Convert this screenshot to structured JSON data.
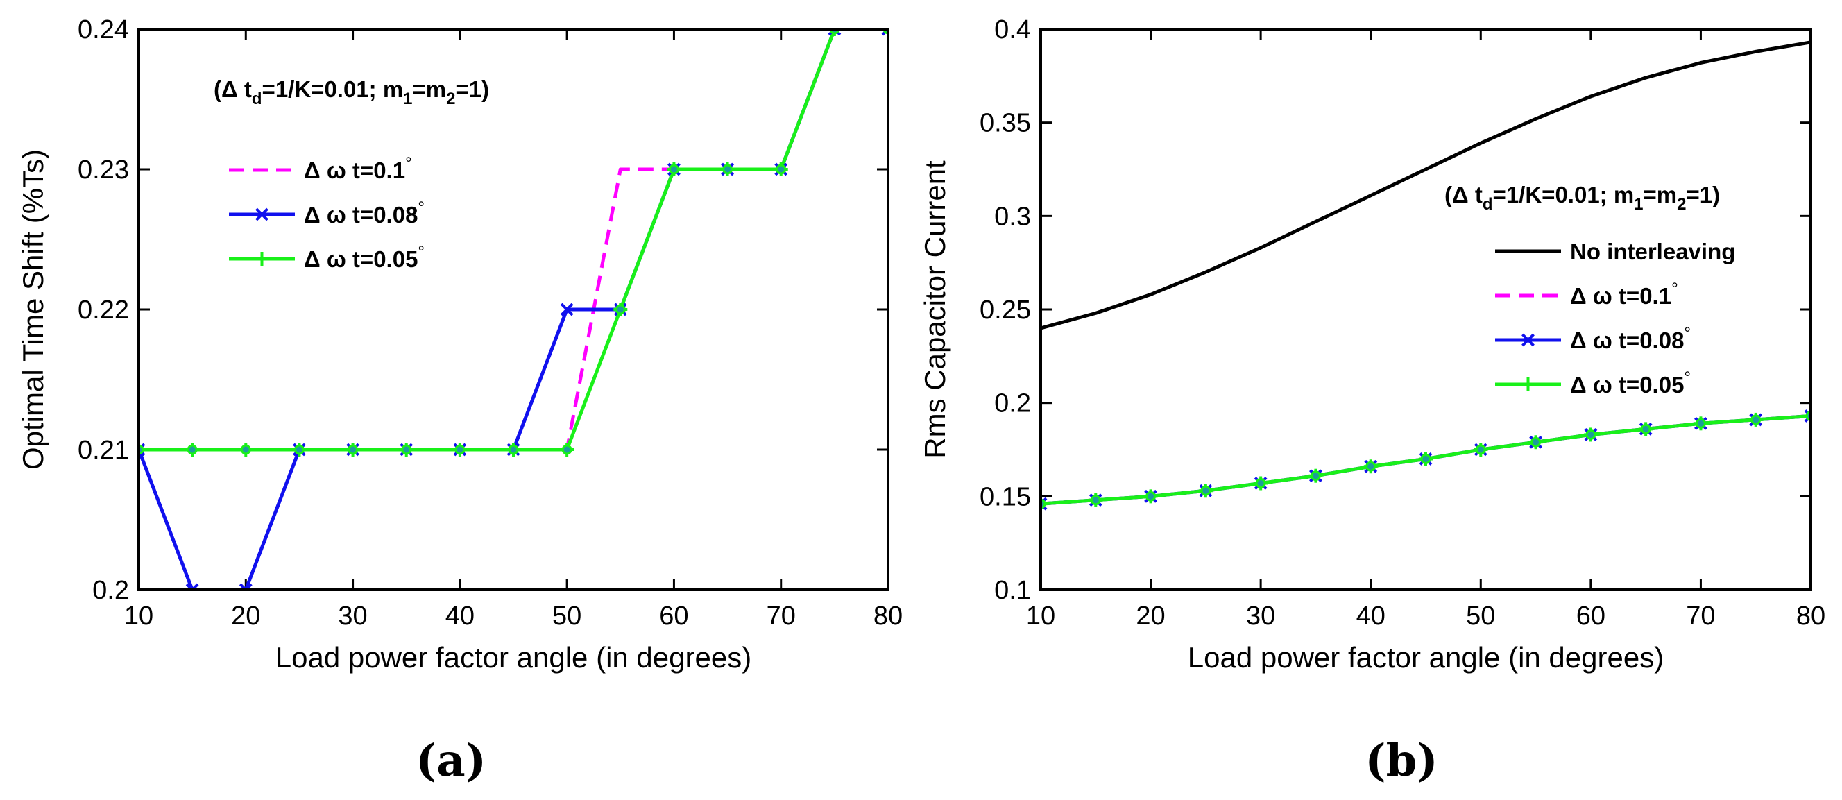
{
  "chart_data": [
    {
      "type": "line",
      "panel_label": "(a)",
      "title": "",
      "xlabel": "Load power factor angle (in degrees)",
      "ylabel": "Optimal Time Shift (%Ts)",
      "xlim": [
        10,
        80
      ],
      "ylim": [
        0.2,
        0.24
      ],
      "xticks": [
        "10",
        "20",
        "30",
        "40",
        "50",
        "60",
        "70",
        "80"
      ],
      "yticks": [
        "0.2",
        "0.21",
        "0.22",
        "0.23",
        "0.24"
      ],
      "annotation": {
        "prefix": "(Δ t",
        "sub1": "d",
        "mid1": "=1/K=0.01; m",
        "sub2": "1",
        "mid2": "=m",
        "sub3": "2",
        "suffix": "=1)"
      },
      "legend_position": "upper-left",
      "series": [
        {
          "name": "Δ ω t=0.1°",
          "label_main": "Δ ω t=0.1",
          "label_sup": "°",
          "color": "#ff00ff",
          "style": "dashed",
          "marker": "none",
          "x": [
            10,
            15,
            20,
            25,
            30,
            35,
            40,
            45,
            50,
            55,
            60,
            65,
            70,
            75,
            80
          ],
          "values": [
            0.21,
            0.21,
            0.21,
            0.21,
            0.21,
            0.21,
            0.21,
            0.21,
            0.21,
            0.23,
            0.23,
            0.23,
            0.23,
            0.24,
            0.24
          ]
        },
        {
          "name": "Δ ω t=0.08°",
          "label_main": "Δ ω t=0.08",
          "label_sup": "°",
          "color": "#1010ee",
          "style": "solid",
          "marker": "x",
          "x": [
            10,
            15,
            20,
            25,
            30,
            35,
            40,
            45,
            50,
            55,
            60,
            65,
            70,
            75,
            80
          ],
          "values": [
            0.21,
            0.2,
            0.2,
            0.21,
            0.21,
            0.21,
            0.21,
            0.21,
            0.22,
            0.22,
            0.23,
            0.23,
            0.23,
            0.24,
            0.24
          ]
        },
        {
          "name": "Δ ω t=0.05°",
          "label_main": "Δ ω t=0.05",
          "label_sup": "°",
          "color": "#19f019",
          "style": "solid",
          "marker": "plus",
          "x": [
            10,
            15,
            20,
            25,
            30,
            35,
            40,
            45,
            50,
            55,
            60,
            65,
            70,
            75,
            80
          ],
          "values": [
            0.21,
            0.21,
            0.21,
            0.21,
            0.21,
            0.21,
            0.21,
            0.21,
            0.21,
            0.22,
            0.23,
            0.23,
            0.23,
            0.24,
            0.24
          ]
        }
      ]
    },
    {
      "type": "line",
      "panel_label": "(b)",
      "title": "",
      "xlabel": "Load power factor angle (in degrees)",
      "ylabel": "Rms Capacitor Current",
      "xlim": [
        10,
        80
      ],
      "ylim": [
        0.1,
        0.4
      ],
      "xticks": [
        "10",
        "20",
        "30",
        "40",
        "50",
        "60",
        "70",
        "80"
      ],
      "yticks": [
        "0.1",
        "0.15",
        "0.2",
        "0.25",
        "0.3",
        "0.35",
        "0.4"
      ],
      "annotation": {
        "prefix": "(Δ t",
        "sub1": "d",
        "mid1": "=1/K=0.01; m",
        "sub2": "1",
        "mid2": "=m",
        "sub3": "2",
        "suffix": "=1)"
      },
      "legend_position": "center-right",
      "series": [
        {
          "name": "No interleaving",
          "label_main": "No interleaving",
          "label_sup": "",
          "color": "#000000",
          "style": "solid",
          "marker": "none",
          "x": [
            10,
            15,
            20,
            25,
            30,
            35,
            40,
            45,
            50,
            55,
            60,
            65,
            70,
            75,
            80
          ],
          "values": [
            0.24,
            0.248,
            0.258,
            0.27,
            0.283,
            0.297,
            0.311,
            0.325,
            0.339,
            0.352,
            0.364,
            0.374,
            0.382,
            0.388,
            0.393
          ]
        },
        {
          "name": "Δ ω t=0.1°",
          "label_main": "Δ ω t=0.1",
          "label_sup": "°",
          "color": "#ff00ff",
          "style": "dashed",
          "marker": "none",
          "x": [
            10,
            15,
            20,
            25,
            30,
            35,
            40,
            45,
            50,
            55,
            60,
            65,
            70,
            75,
            80
          ],
          "values": [
            0.146,
            0.148,
            0.15,
            0.153,
            0.157,
            0.161,
            0.166,
            0.17,
            0.175,
            0.179,
            0.183,
            0.186,
            0.189,
            0.191,
            0.193
          ]
        },
        {
          "name": "Δ ω t=0.08°",
          "label_main": "Δ ω t=0.08",
          "label_sup": "°",
          "color": "#1010ee",
          "style": "solid",
          "marker": "x",
          "x": [
            10,
            15,
            20,
            25,
            30,
            35,
            40,
            45,
            50,
            55,
            60,
            65,
            70,
            75,
            80
          ],
          "values": [
            0.146,
            0.148,
            0.15,
            0.153,
            0.157,
            0.161,
            0.166,
            0.17,
            0.175,
            0.179,
            0.183,
            0.186,
            0.189,
            0.191,
            0.193
          ]
        },
        {
          "name": "Δ ω t=0.05°",
          "label_main": "Δ ω t=0.05",
          "label_sup": "°",
          "color": "#19f019",
          "style": "solid",
          "marker": "plus",
          "x": [
            10,
            15,
            20,
            25,
            30,
            35,
            40,
            45,
            50,
            55,
            60,
            65,
            70,
            75,
            80
          ],
          "values": [
            0.146,
            0.148,
            0.15,
            0.153,
            0.157,
            0.161,
            0.166,
            0.17,
            0.175,
            0.179,
            0.183,
            0.186,
            0.189,
            0.191,
            0.193
          ]
        }
      ]
    }
  ]
}
